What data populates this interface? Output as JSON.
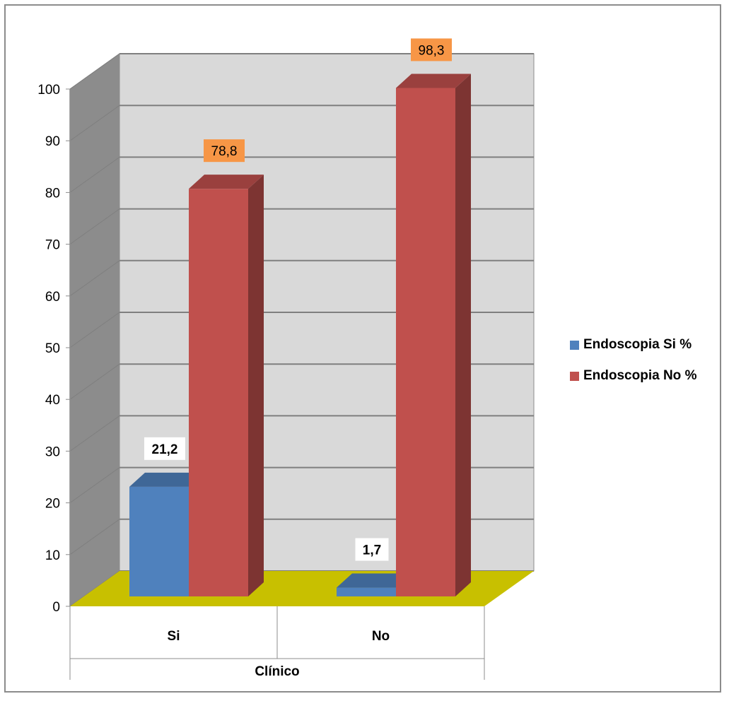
{
  "chart_data": {
    "type": "bar",
    "title": "",
    "xlabel": "Clínico",
    "ylabel": "",
    "categories": [
      "Si",
      "No"
    ],
    "series": [
      {
        "name": "Endoscopia Si %",
        "values": [
          21.2,
          1.7
        ],
        "labels": [
          "21,2",
          "1,7"
        ],
        "color": "#4f81bd",
        "label_bg": "#ffffff",
        "label_bold": true
      },
      {
        "name": "Endoscopia No %",
        "values": [
          78.8,
          98.3
        ],
        "labels": [
          "78,8",
          "98,3"
        ],
        "color": "#c0504d",
        "label_bg": "#f79646",
        "label_bold": false
      }
    ],
    "ylim": [
      0,
      100
    ],
    "yticks": [
      "0",
      "10",
      "20",
      "30",
      "40",
      "50",
      "60",
      "70",
      "80",
      "90",
      "100"
    ],
    "grid": true,
    "legend_position": "right",
    "style": "3d-clustered-column",
    "colors": {
      "wall": "#d9d9d9",
      "side_wall": "#8c8c8c",
      "floor": "#c8c000",
      "grid": "#7f7f7f"
    }
  }
}
